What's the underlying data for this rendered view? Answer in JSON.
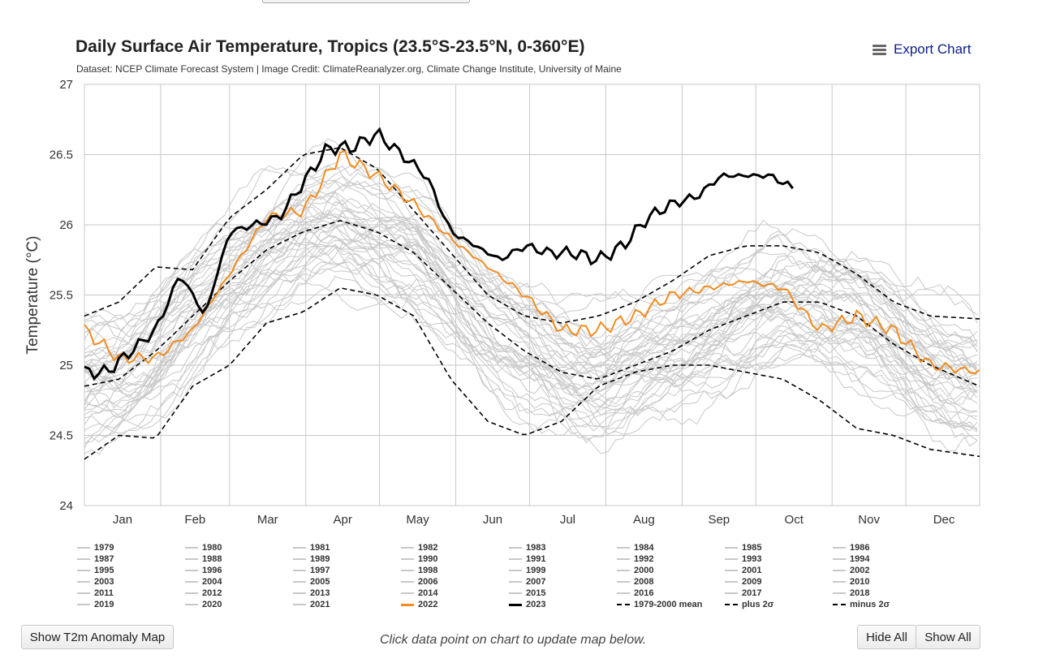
{
  "header": {
    "title": "Daily Surface Air Temperature, Tropics (23.5°S-23.5°N, 0-360°E)",
    "subtitle": "Dataset: NCEP Climate Forecast System | Image Credit: ClimateReanalyzer.org, Climate Change Institute, University of Maine",
    "export_label": "Export Chart"
  },
  "controls": {
    "anomaly_map_label": "Show T2m Anomaly Map",
    "hint": "Click data point on chart to update map below.",
    "hide_all_label": "Hide All",
    "show_all_label": "Show All"
  },
  "colors": {
    "past_years": "#c8c8c8",
    "year_2022": "#f28c1e",
    "year_2023": "#000000",
    "stats": "#000000",
    "grid": "#c8c8c8"
  },
  "chart_data": {
    "type": "line",
    "ylabel": "Temperature (°C)",
    "ylim": [
      24,
      27
    ],
    "yticks": [
      "27",
      "26.5",
      "26",
      "25.5",
      "25",
      "24.5",
      "24"
    ],
    "months": [
      "Jan",
      "Feb",
      "Mar",
      "Apr",
      "May",
      "Jun",
      "Jul",
      "Aug",
      "Sep",
      "Oct",
      "Nov",
      "Dec"
    ],
    "grid": true,
    "x_day_of_year": [
      1,
      15,
      30,
      45,
      60,
      75,
      90,
      105,
      120,
      135,
      150,
      165,
      180,
      195,
      210,
      225,
      240,
      255,
      270,
      285,
      300,
      315,
      330,
      345,
      365
    ],
    "series": [
      {
        "name": "1979-2000 mean",
        "style": "dashed",
        "values": [
          24.85,
          24.9,
          25.1,
          25.35,
          25.6,
          25.82,
          25.95,
          26.03,
          25.95,
          25.8,
          25.55,
          25.3,
          25.1,
          24.95,
          24.9,
          25.0,
          25.1,
          25.25,
          25.35,
          25.45,
          25.45,
          25.35,
          25.15,
          25.0,
          24.85
        ]
      },
      {
        "name": "plus 2σ",
        "style": "dashed",
        "values": [
          25.35,
          25.45,
          25.7,
          25.68,
          26.05,
          26.25,
          26.5,
          26.55,
          26.4,
          26.1,
          25.8,
          25.5,
          25.35,
          25.3,
          25.35,
          25.45,
          25.6,
          25.78,
          25.85,
          25.85,
          25.8,
          25.65,
          25.45,
          25.35,
          25.33
        ]
      },
      {
        "name": "minus 2σ",
        "style": "dashed",
        "values": [
          24.33,
          24.5,
          24.48,
          24.85,
          25.0,
          25.3,
          25.38,
          25.55,
          25.5,
          25.35,
          24.9,
          24.6,
          24.5,
          24.6,
          24.85,
          24.95,
          25.0,
          25.0,
          24.95,
          24.9,
          24.75,
          24.55,
          24.5,
          24.4,
          24.35
        ]
      },
      {
        "name": "2022",
        "values": [
          25.25,
          25.05,
          25.05,
          25.25,
          25.65,
          26.05,
          26.1,
          26.5,
          26.35,
          26.15,
          25.9,
          25.7,
          25.5,
          25.25,
          25.25,
          25.35,
          25.5,
          25.55,
          25.6,
          25.55,
          25.25,
          25.35,
          25.25,
          25.0,
          24.95
        ]
      },
      {
        "name": "2023",
        "x_day_of_year": [
          1,
          10,
          20,
          30,
          40,
          50,
          60,
          70,
          80,
          90,
          100,
          110,
          120,
          130,
          140,
          150,
          160,
          170,
          180,
          190,
          200,
          210,
          220,
          230,
          240,
          250,
          260,
          270,
          280,
          290
        ],
        "values": [
          24.95,
          24.95,
          25.1,
          25.25,
          25.65,
          25.35,
          25.95,
          26.0,
          26.05,
          26.3,
          26.55,
          26.55,
          26.65,
          26.5,
          26.35,
          25.95,
          25.85,
          25.75,
          25.85,
          25.8,
          25.8,
          25.75,
          25.85,
          26.05,
          26.15,
          26.2,
          26.35,
          26.35,
          26.35,
          26.25
        ]
      }
    ],
    "legend": [
      "1979",
      "1980",
      "1981",
      "1982",
      "1983",
      "1984",
      "1985",
      "1986",
      "1987",
      "1988",
      "1989",
      "1990",
      "1991",
      "1992",
      "1993",
      "1994",
      "1995",
      "1996",
      "1997",
      "1998",
      "1999",
      "2000",
      "2001",
      "2002",
      "2003",
      "2004",
      "2005",
      "2006",
      "2007",
      "2008",
      "2009",
      "2010",
      "2011",
      "2012",
      "2013",
      "2014",
      "2015",
      "2016",
      "2017",
      "2018",
      "2019",
      "2020",
      "2021",
      "2022",
      "2023",
      "1979-2000 mean",
      "plus 2σ",
      "minus 2σ"
    ]
  }
}
